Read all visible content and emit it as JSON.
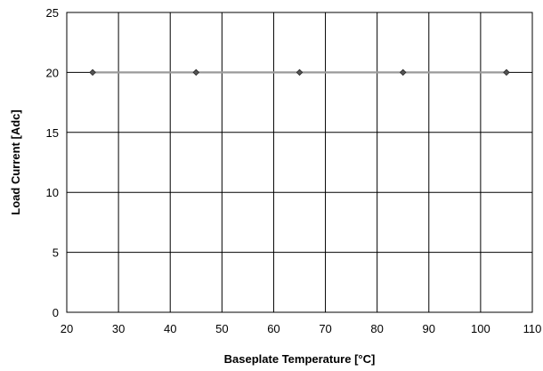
{
  "chart_data": {
    "type": "line",
    "title": "",
    "xlabel": "Baseplate Temperature [°C]",
    "ylabel": "Load Current  [Adc]",
    "xlim": [
      20,
      110
    ],
    "ylim": [
      0,
      25
    ],
    "x_ticks": [
      20,
      30,
      40,
      50,
      60,
      70,
      80,
      90,
      100,
      110
    ],
    "y_ticks": [
      0,
      5,
      10,
      15,
      20,
      25
    ],
    "grid": true,
    "legend": "none",
    "series": [
      {
        "x": [
          25,
          45,
          65,
          85,
          105
        ],
        "values": [
          20,
          20,
          20,
          20,
          20
        ],
        "line_color": "#9a9a9a",
        "marker_color": "#555555",
        "marker": "diamond"
      }
    ]
  }
}
